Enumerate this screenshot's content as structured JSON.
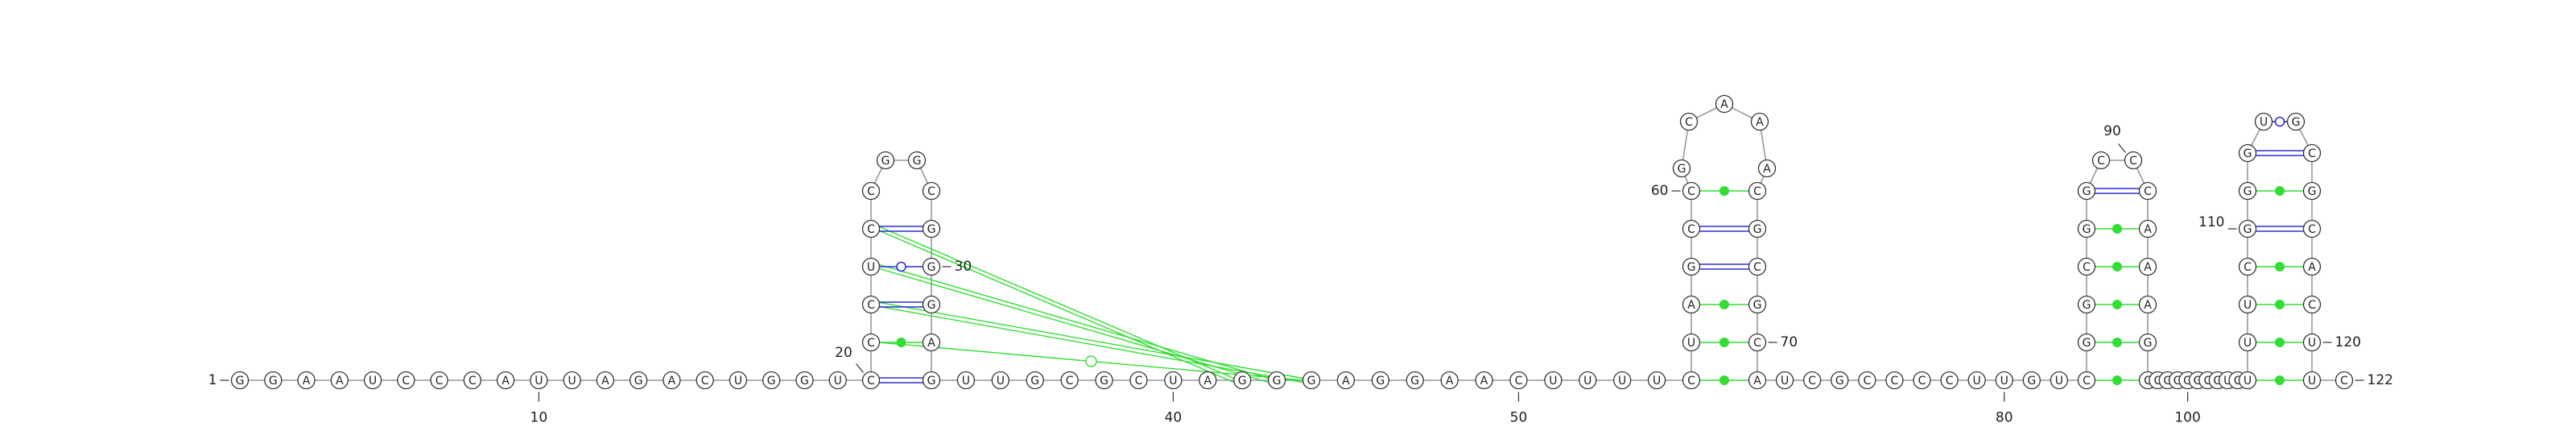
{
  "diagram": {
    "sequence": "GGAAUCCCAUUAGACUGGUCCCUCCGGCGGGAGUUGCGCUAGGGAGGAACUUUUCUAGCCGCAAACGCGCAUCGCCCCUUGUCGGCGGCCCAAAGCCGGGGCGUCUUUCGGGUGCGCACUUC",
    "sequence_start": 1,
    "length": 122,
    "position_labels": [
      "1",
      "10",
      "20",
      "30",
      "40",
      "50",
      "60",
      "70",
      "80",
      "90",
      "100",
      "110",
      "120",
      "122"
    ],
    "stems": [
      {
        "id": "stem-1",
        "pairs": [
          [
            20,
            33
          ],
          [
            21,
            32
          ],
          [
            22,
            31
          ],
          [
            23,
            30
          ],
          [
            24,
            29
          ]
        ]
      },
      {
        "id": "stem-2",
        "pairs": [
          [
            55,
            71
          ],
          [
            56,
            70
          ],
          [
            57,
            69
          ],
          [
            58,
            68
          ],
          [
            59,
            67
          ],
          [
            60,
            66
          ]
        ]
      },
      {
        "id": "stem-3",
        "pairs": [
          [
            83,
            96
          ],
          [
            84,
            95
          ],
          [
            85,
            94
          ],
          [
            86,
            93
          ],
          [
            87,
            92
          ],
          [
            88,
            91
          ]
        ]
      },
      {
        "id": "stem-4",
        "pairs": [
          [
            106,
            121
          ],
          [
            107,
            120
          ],
          [
            108,
            119
          ],
          [
            109,
            118
          ],
          [
            110,
            117
          ],
          [
            111,
            116
          ],
          [
            112,
            115
          ],
          [
            113,
            114
          ]
        ]
      }
    ],
    "tertiary_interactions": [
      {
        "from": 24,
        "to": 42,
        "style": "double"
      },
      {
        "from": 23,
        "to": 43,
        "style": "double"
      },
      {
        "from": 22,
        "to": 44,
        "style": "double"
      },
      {
        "from": 21,
        "to": 44,
        "style": "single-open-circle"
      }
    ],
    "colors": {
      "nucleotide_stroke": "#333333",
      "backbone": "#999999",
      "canonical_pair": "#2f2fd0",
      "tertiary": "#33dd33",
      "text": "#222222"
    }
  }
}
